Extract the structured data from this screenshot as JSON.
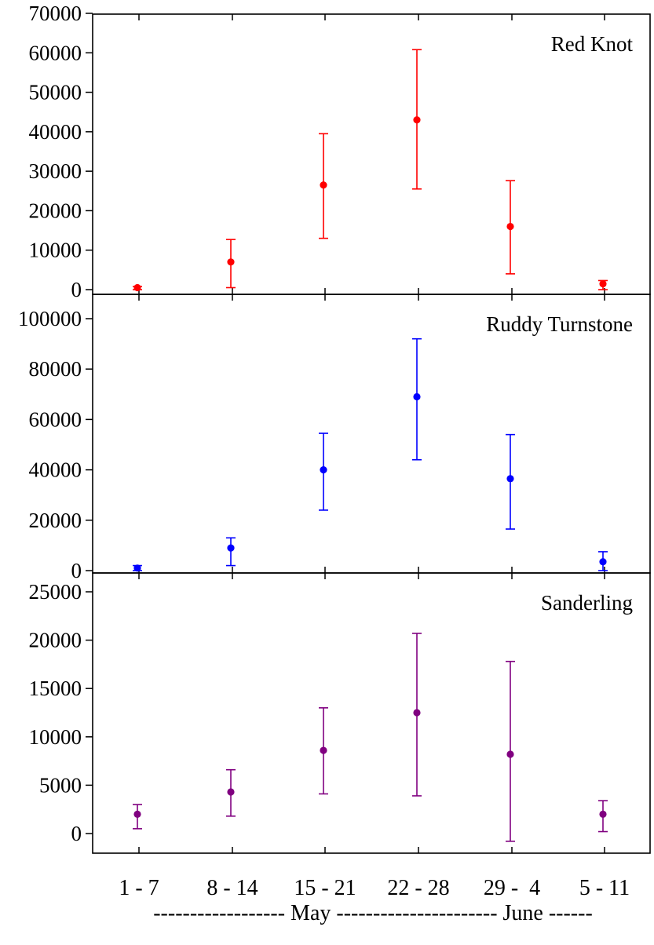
{
  "chart_data": {
    "type": "scatter",
    "categories": [
      "1 - 7",
      "8 - 14",
      "15 - 21",
      "22 - 28",
      "29 -  4",
      "5 - 11"
    ],
    "x_caption": "------------------ May ---------------------- June ------",
    "panels": [
      {
        "label": "Red Knot",
        "color": "#ff0000",
        "ylim": [
          0,
          70000
        ],
        "yticks": [
          0,
          10000,
          20000,
          30000,
          40000,
          50000,
          60000,
          70000
        ],
        "yticklabels": [
          "0",
          "10000",
          "20000",
          "30000",
          "40000",
          "50000",
          "60000",
          "70000"
        ],
        "values": [
          500,
          7000,
          26500,
          43000,
          16000,
          1500
        ],
        "lower": [
          0,
          500,
          13000,
          25500,
          4000,
          0
        ],
        "upper": [
          800,
          12700,
          39500,
          60800,
          27600,
          2300
        ]
      },
      {
        "label": "Ruddy Turnstone",
        "color": "#0000ff",
        "ylim": [
          0,
          110000
        ],
        "yticks": [
          0,
          20000,
          40000,
          60000,
          80000,
          100000
        ],
        "yticklabels": [
          "0",
          "20000",
          "40000",
          "60000",
          "80000",
          "100000"
        ],
        "values": [
          1000,
          9000,
          40000,
          69000,
          36500,
          3500
        ],
        "lower": [
          0,
          2000,
          24000,
          44000,
          16500,
          0
        ],
        "upper": [
          2000,
          13000,
          54500,
          92000,
          54000,
          7500
        ]
      },
      {
        "label": "Sanderling",
        "color": "#800080",
        "ylim": [
          -1500,
          26000
        ],
        "yticks": [
          0,
          5000,
          10000,
          15000,
          20000,
          25000
        ],
        "yticklabels": [
          "0",
          "5000",
          "10000",
          "15000",
          "20000",
          "25000"
        ],
        "values": [
          2000,
          4300,
          8600,
          12500,
          8200,
          2000
        ],
        "lower": [
          500,
          1800,
          4100,
          3900,
          -800,
          200
        ],
        "upper": [
          3000,
          6600,
          13000,
          20700,
          17800,
          3400
        ]
      }
    ]
  }
}
